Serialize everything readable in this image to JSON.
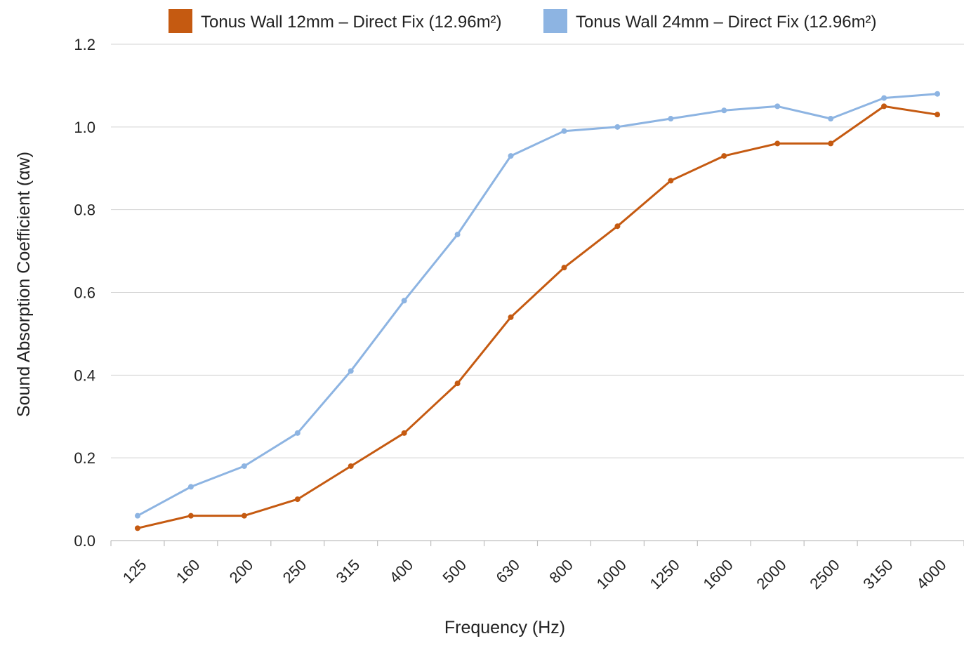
{
  "chart_data": {
    "type": "line",
    "title": "",
    "xlabel": "Frequency (Hz)",
    "ylabel": "Sound Absorption Coefficient (αw)",
    "categories": [
      "125",
      "160",
      "200",
      "250",
      "315",
      "400",
      "500",
      "630",
      "800",
      "1000",
      "1250",
      "1600",
      "2000",
      "2500",
      "3150",
      "4000"
    ],
    "ylim": [
      0,
      1.2
    ],
    "yticks": [
      "0.0",
      "0.2",
      "0.4",
      "0.6",
      "0.8",
      "1.0",
      "1.2"
    ],
    "grid": true,
    "legend_position": "top",
    "series": [
      {
        "name": "Tonus Wall 12mm – Direct Fix (12.96m²)",
        "color": "#c55a11",
        "values": [
          0.03,
          0.06,
          0.06,
          0.1,
          0.18,
          0.26,
          0.38,
          0.54,
          0.66,
          0.76,
          0.87,
          0.93,
          0.96,
          0.96,
          1.05,
          1.03
        ]
      },
      {
        "name": "Tonus Wall 24mm – Direct Fix (12.96m²)",
        "color": "#8db4e2",
        "values": [
          0.06,
          0.13,
          0.18,
          0.26,
          0.41,
          0.58,
          0.74,
          0.93,
          0.99,
          1.0,
          1.02,
          1.04,
          1.05,
          1.02,
          1.07,
          1.08
        ]
      }
    ]
  }
}
